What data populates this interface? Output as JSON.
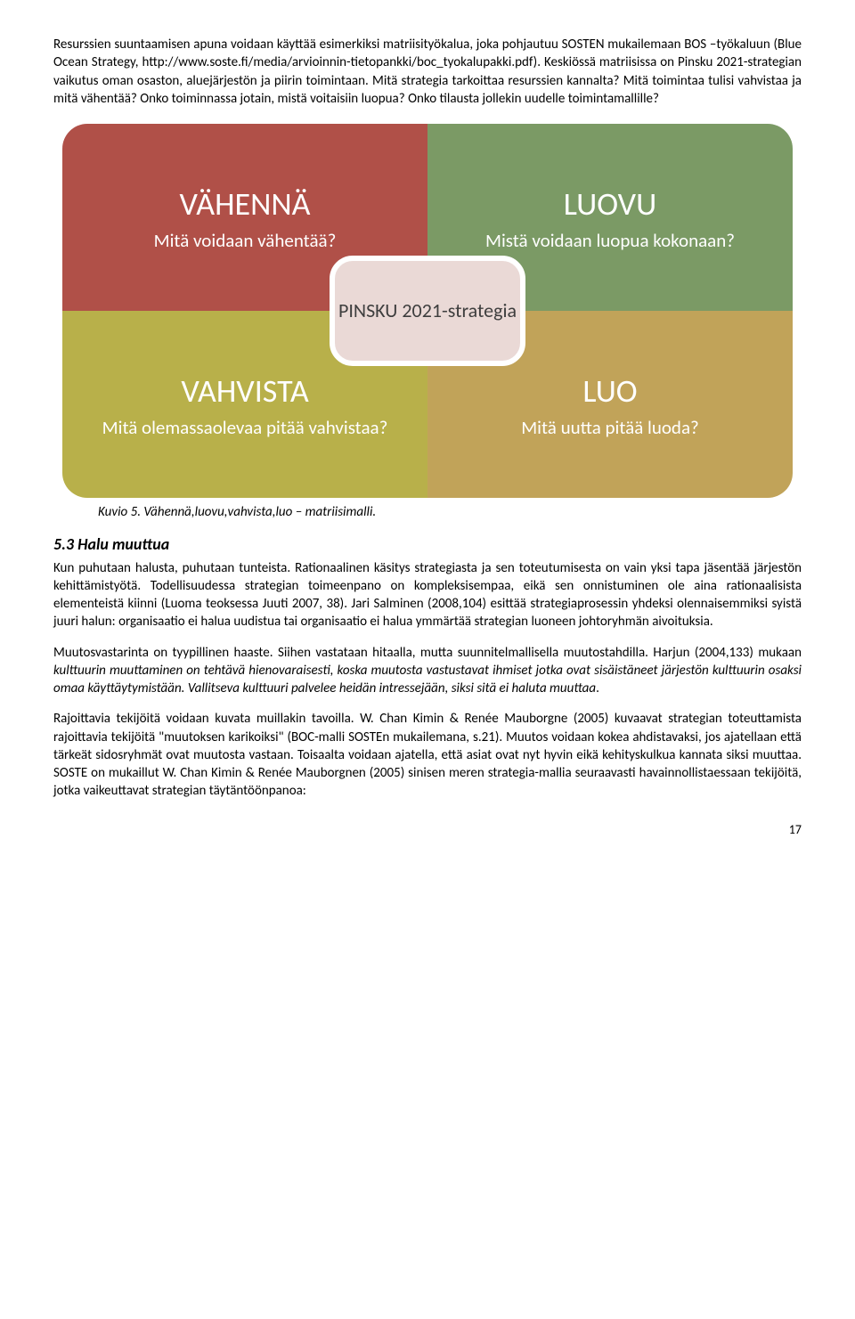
{
  "intro": "Resurssien suuntaamisen apuna voidaan käyttää esimerkiksi matriisityökalua, joka pohjautuu SOSTEN mukailemaan BOS –työkaluun (Blue Ocean Strategy, http://www.soste.fi/media/arvioinnin-tietopankki/boc_tyokalupakki.pdf). Keskiössä matriisissa on  Pinsku 2021-strategian vaikutus oman osaston, aluejärjestön ja piirin toimintaan. Mitä strategia tarkoittaa resurssien kannalta? Mitä toimintaa tulisi vahvistaa ja mitä vähentää? Onko toiminnassa jotain, mistä voitaisiin luopua? Onko tilausta jollekin uudelle toimintamallille?",
  "matrix": {
    "tl": {
      "title": "VÄHENNÄ",
      "sub": "Mitä voidaan vähentää?",
      "bg": "#b05048",
      "fg": "#ffffff"
    },
    "tr": {
      "title": "LUOVU",
      "sub": "Mistä voidaan luopua kokonaan?",
      "bg": "#7b9a65",
      "fg": "#ffffff"
    },
    "bl": {
      "title": "VAHVISTA",
      "sub": "Mitä olemassaolevaa pitää vahvistaa?",
      "bg": "#b8b04a",
      "fg": "#ffffff"
    },
    "br": {
      "title": "LUO",
      "sub": "Mitä uutta pitää luoda?",
      "bg": "#c1a359",
      "fg": "#ffffff"
    },
    "center": {
      "text": "PINSKU 2021-strategia",
      "bg": "#ead9d6",
      "fg": "#3e3e3e"
    }
  },
  "caption_label": "Kuvio 5. Vähennä,luovu,vahvista,luo – matriisimalli.",
  "section_heading": "5.3 Halu muuttua",
  "p1": "Kun puhutaan halusta, puhutaan tunteista. Rationaalinen käsitys strategiasta ja sen toteutumisesta on vain yksi tapa jäsentää järjestön kehittämistyötä. Todellisuudessa strategian toimeenpano on kompleksisempaa, eikä sen onnistuminen ole aina rationaalisista elementeistä kiinni (Luoma teoksessa Juuti 2007, 38). Jari Salminen (2008,104) esittää strategiaprosessin yhdeksi olennaisemmiksi syistä juuri halun: organisaatio ei halua uudistua tai organisaatio ei halua ymmärtää strategian luoneen johtoryhmän aivoituksia.",
  "p2a": "Muutosvastarinta on tyypillinen haaste. Siihen vastataan hitaalla, mutta suunnitelmallisella muutostahdilla. Harjun (2004,133) mukaan ",
  "p2b": "kulttuurin muuttaminen on tehtävä hienovaraisesti, koska muutosta vastustavat ihmiset jotka ovat sisäistäneet järjestön kulttuurin osaksi omaa käyttäytymistään. Vallitseva kulttuuri palvelee heidän intressejään, siksi sitä ei haluta muuttaa",
  "p2c": ".",
  "p3": "Rajoittavia tekijöitä voidaan kuvata muillakin tavoilla. W. Chan Kimin & Renée Mauborgne (2005) kuvaavat strategian toteuttamista rajoittavia tekijöitä \"muutoksen karikoiksi\" (BOC-malli SOSTEn mukailemana, s.21). Muutos voidaan kokea ahdistavaksi, jos ajatellaan että tärkeät sidosryhmät ovat muutosta vastaan. Toisaalta voidaan ajatella, että asiat ovat nyt hyvin eikä kehityskulkua kannata siksi muuttaa.  SOSTE on mukaillut W. Chan Kimin & Renée Mauborgnen (2005) sinisen meren strategia-mallia seuraavasti havainnollistaessaan tekijöitä, jotka vaikeuttavat strategian täytäntöönpanoa:",
  "page_number": "17"
}
